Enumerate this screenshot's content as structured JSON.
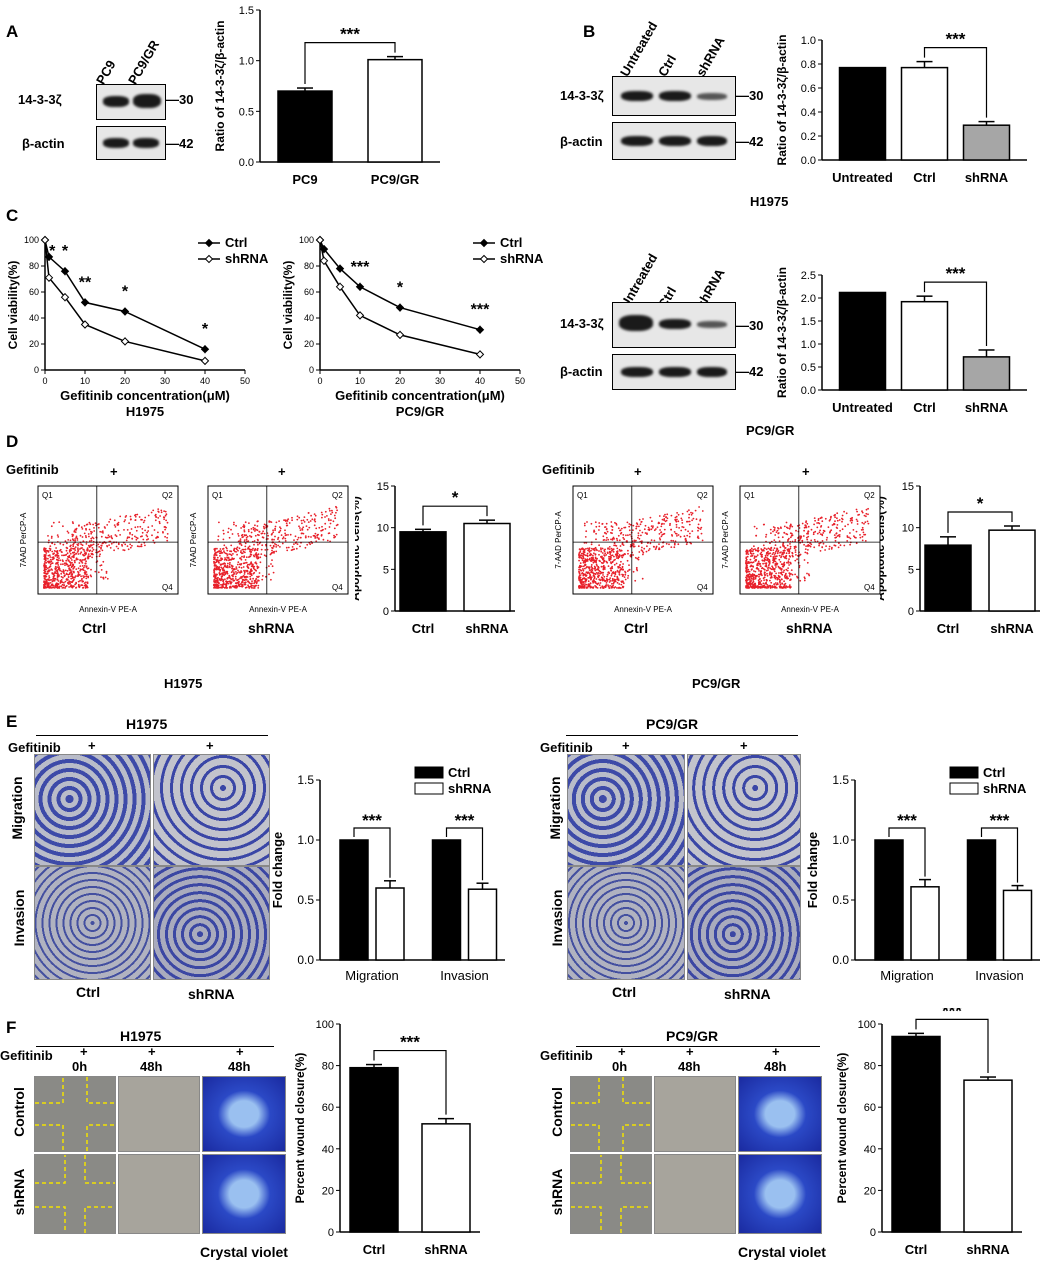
{
  "panels": {
    "A": {
      "label": "A",
      "lanes": [
        "PC9",
        "PC9/GR"
      ],
      "rows": [
        "14-3-3ζ",
        "β-actin"
      ],
      "kda": [
        "30",
        "42"
      ],
      "chart": {
        "ylabel": "Ratio of 14-3-3ζ/β-actin",
        "categories": [
          "PC9",
          "PC9/GR"
        ],
        "values": [
          0.7,
          1.01
        ],
        "errors": [
          0.03,
          0.03
        ],
        "ylim": [
          0,
          1.5
        ],
        "yticks": [
          "0.0",
          "0.5",
          "1.0",
          "1.5"
        ],
        "sig": "***",
        "fills": [
          "#000000",
          "#ffffff"
        ]
      }
    },
    "B": {
      "label": "B",
      "lanes": [
        "Untreated",
        "Ctrl",
        "shRNA"
      ],
      "rows": [
        "14-3-3ζ",
        "β-actin"
      ],
      "kda": [
        "30",
        "42"
      ],
      "cell": "H1975",
      "chart": {
        "ylabel": "Ratio of 14-3-3ζ/β-actin",
        "categories": [
          "Untreated",
          "Ctrl",
          "shRNA"
        ],
        "values": [
          0.77,
          0.77,
          0.29
        ],
        "errors": [
          0,
          0.05,
          0.03
        ],
        "ylim": [
          0,
          1.0
        ],
        "yticks": [
          "0.0",
          "0.2",
          "0.4",
          "0.6",
          "0.8",
          "1.0"
        ],
        "sig": "***",
        "fills": [
          "#000000",
          "#ffffff",
          "#a6a6a6"
        ]
      }
    },
    "C": {
      "label": "C",
      "viability": [
        {
          "cell": "H1975",
          "xlabel": "Gefitinib concentration(μM)",
          "ylabel": "Cell viability(%)",
          "legend": [
            "Ctrl",
            "shRNA"
          ],
          "sig": [
            "*",
            "*",
            "**",
            "*",
            "*"
          ]
        },
        {
          "cell": "PC9/GR",
          "xlabel": "Gefitinib concentration(μM)",
          "ylabel": "Cell viability(%)",
          "legend": [
            "Ctrl",
            "shRNA"
          ],
          "sig": [
            "***",
            "*",
            "***"
          ]
        }
      ],
      "blot": {
        "lanes": [
          "Untreated",
          "Ctrl",
          "shRNA"
        ],
        "rows": [
          "14-3-3ζ",
          "β-actin"
        ],
        "kda": [
          "30",
          "42"
        ],
        "cell": "PC9/GR"
      },
      "chart": {
        "ylabel": "Ratio of 14-3-3ζ/β-actin",
        "categories": [
          "Untreated",
          "Ctrl",
          "shRNA"
        ],
        "values": [
          2.12,
          1.92,
          0.72
        ],
        "errors": [
          0,
          0.12,
          0.15
        ],
        "ylim": [
          0,
          2.5
        ],
        "yticks": [
          "0.0",
          "0.5",
          "1.0",
          "1.5",
          "2.0",
          "2.5"
        ],
        "sig": "***",
        "fills": [
          "#000000",
          "#ffffff",
          "#a6a6a6"
        ]
      }
    },
    "D": {
      "label": "D",
      "gefitinib": "Gefitinib",
      "plus": "+",
      "groups": [
        {
          "cell": "H1975",
          "plots": [
            "Ctrl",
            "shRNA"
          ],
          "ylabel_axis": "7AAD PerCP-A",
          "xlabel_axis": "Annexin-V PE-A",
          "quads": [
            "Q1",
            "Q2",
            "Q4"
          ],
          "chart": {
            "ylabel": "Apoptotic cells(%)",
            "categories": [
              "Ctrl",
              "shRNA"
            ],
            "values": [
              9.5,
              10.5
            ],
            "errors": [
              0.3,
              0.4
            ],
            "ylim": [
              0,
              15
            ],
            "yticks": [
              "0",
              "5",
              "10",
              "15"
            ],
            "sig": "*",
            "fills": [
              "#000000",
              "#ffffff"
            ]
          }
        },
        {
          "cell": "PC9/GR",
          "plots": [
            "Ctrl",
            "shRNA"
          ],
          "ylabel_axis": "7-AAD PerCP-A",
          "xlabel_axis": "Annexin-V PE-A",
          "quads": [
            "Q1",
            "Q2",
            "Q4"
          ],
          "chart": {
            "ylabel": "Apoptotic cells(%)",
            "categories": [
              "Ctrl",
              "shRNA"
            ],
            "values": [
              7.9,
              9.7
            ],
            "errors": [
              1.0,
              0.5
            ],
            "ylim": [
              0,
              15
            ],
            "yticks": [
              "0",
              "5",
              "10",
              "15"
            ],
            "sig": "*",
            "fills": [
              "#000000",
              "#ffffff"
            ]
          }
        }
      ]
    },
    "E": {
      "label": "E",
      "gefitinib": "Gefitinib",
      "plus": "+",
      "rows": [
        "Migration",
        "Invasion"
      ],
      "cols": [
        "Ctrl",
        "shRNA"
      ],
      "groups": [
        {
          "cell": "H1975",
          "chart": {
            "ylabel": "Fold change",
            "categories": [
              "Migration",
              "Invasion"
            ],
            "legend": [
              "Ctrl",
              "shRNA"
            ],
            "series": [
              {
                "name": "Ctrl",
                "values": [
                  1.0,
                  1.0
                ]
              },
              {
                "name": "shRNA",
                "values": [
                  0.6,
                  0.59
                ]
              }
            ],
            "errors": [
              0.06,
              0.05
            ],
            "ylim": [
              0,
              1.5
            ],
            "yticks": [
              "0.0",
              "0.5",
              "1.0",
              "1.5"
            ],
            "sig": [
              "***",
              "***"
            ]
          }
        },
        {
          "cell": "PC9/GR",
          "chart": {
            "ylabel": "Fold change",
            "categories": [
              "Migration",
              "Invasion"
            ],
            "legend": [
              "Ctrl",
              "shRNA"
            ],
            "series": [
              {
                "name": "Ctrl",
                "values": [
                  1.0,
                  1.0
                ]
              },
              {
                "name": "shRNA",
                "values": [
                  0.61,
                  0.58
                ]
              }
            ],
            "errors": [
              0.06,
              0.04
            ],
            "ylim": [
              0,
              1.5
            ],
            "yticks": [
              "0.0",
              "0.5",
              "1.0",
              "1.5"
            ],
            "sig": [
              "***",
              "***"
            ]
          }
        }
      ]
    },
    "F": {
      "label": "F",
      "gefitinib": "Gefitinib",
      "plus": "+",
      "times": [
        "0h",
        "48h",
        "48h"
      ],
      "rows": [
        "Control",
        "shRNA"
      ],
      "crystal": "Crystal violet",
      "groups": [
        {
          "cell": "H1975",
          "chart": {
            "ylabel": "Percent wound closure(%)",
            "categories": [
              "Ctrl",
              "shRNA"
            ],
            "values": [
              79,
              52
            ],
            "errors": [
              1.5,
              2.5
            ],
            "ylim": [
              0,
              100
            ],
            "yticks": [
              "0",
              "20",
              "40",
              "60",
              "80",
              "100"
            ],
            "sig": "***",
            "fills": [
              "#000000",
              "#ffffff"
            ]
          }
        },
        {
          "cell": "PC9/GR",
          "chart": {
            "ylabel": "Percent wound closure(%)",
            "categories": [
              "Ctrl",
              "shRNA"
            ],
            "values": [
              94,
              73
            ],
            "errors": [
              1.5,
              1.5
            ],
            "ylim": [
              0,
              100
            ],
            "yticks": [
              "0",
              "20",
              "40",
              "60",
              "80",
              "100"
            ],
            "sig": "***",
            "fills": [
              "#000000",
              "#ffffff"
            ]
          }
        }
      ]
    }
  },
  "chart_data": [
    {
      "type": "bar",
      "categories": [
        "PC9",
        "PC9/GR"
      ],
      "values": [
        0.7,
        1.01
      ],
      "ylabel": "Ratio of 14-3-3ζ/β-actin",
      "ylim": [
        0,
        1.5
      ]
    },
    {
      "type": "bar",
      "categories": [
        "Untreated",
        "Ctrl",
        "shRNA"
      ],
      "values": [
        0.77,
        0.77,
        0.29
      ],
      "ylabel": "Ratio of 14-3-3ζ/β-actin",
      "xlabel": "H1975",
      "ylim": [
        0,
        1.0
      ]
    },
    {
      "type": "line",
      "x": [
        0,
        1,
        5,
        10,
        20,
        40
      ],
      "series": [
        {
          "name": "Ctrl",
          "values": [
            100,
            87,
            76,
            52,
            45,
            16
          ]
        },
        {
          "name": "shRNA",
          "values": [
            100,
            71,
            56,
            35,
            22,
            7
          ]
        }
      ],
      "xlabel": "Gefitinib concentration(μM)",
      "ylabel": "Cell viability(%)",
      "title": "H1975",
      "ylim": [
        0,
        100
      ]
    },
    {
      "type": "line",
      "x": [
        0,
        1,
        5,
        10,
        20,
        40
      ],
      "series": [
        {
          "name": "Ctrl",
          "values": [
            100,
            93,
            78,
            64,
            48,
            31
          ]
        },
        {
          "name": "shRNA",
          "values": [
            100,
            84,
            64,
            42,
            27,
            12
          ]
        }
      ],
      "xlabel": "Gefitinib concentration(μM)",
      "ylabel": "Cell viability(%)",
      "title": "PC9/GR",
      "ylim": [
        0,
        100
      ]
    },
    {
      "type": "bar",
      "categories": [
        "Untreated",
        "Ctrl",
        "shRNA"
      ],
      "values": [
        2.12,
        1.92,
        0.72
      ],
      "ylabel": "Ratio of 14-3-3ζ/β-actin",
      "xlabel": "PC9/GR",
      "ylim": [
        0,
        2.5
      ]
    },
    {
      "type": "bar",
      "categories": [
        "Ctrl",
        "shRNA"
      ],
      "values": [
        9.5,
        10.5
      ],
      "ylabel": "Apoptotic cells(%)",
      "ylim": [
        0,
        15
      ]
    },
    {
      "type": "bar",
      "categories": [
        "Ctrl",
        "shRNA"
      ],
      "values": [
        7.9,
        9.7
      ],
      "ylabel": "Apoptotic cells(%)",
      "ylim": [
        0,
        15
      ]
    },
    {
      "type": "bar",
      "categories": [
        "Migration",
        "Invasion"
      ],
      "series": [
        {
          "name": "Ctrl",
          "values": [
            1.0,
            1.0
          ]
        },
        {
          "name": "shRNA",
          "values": [
            0.6,
            0.59
          ]
        }
      ],
      "ylabel": "Fold change",
      "ylim": [
        0,
        1.5
      ]
    },
    {
      "type": "bar",
      "categories": [
        "Migration",
        "Invasion"
      ],
      "series": [
        {
          "name": "Ctrl",
          "values": [
            1.0,
            1.0
          ]
        },
        {
          "name": "shRNA",
          "values": [
            0.61,
            0.58
          ]
        }
      ],
      "ylabel": "Fold change",
      "ylim": [
        0,
        1.5
      ]
    },
    {
      "type": "bar",
      "categories": [
        "Ctrl",
        "shRNA"
      ],
      "values": [
        79,
        52
      ],
      "ylabel": "Percent wound closure(%)",
      "ylim": [
        0,
        100
      ]
    },
    {
      "type": "bar",
      "categories": [
        "Ctrl",
        "shRNA"
      ],
      "values": [
        94,
        73
      ],
      "ylabel": "Percent wound closure(%)",
      "ylim": [
        0,
        100
      ]
    }
  ]
}
